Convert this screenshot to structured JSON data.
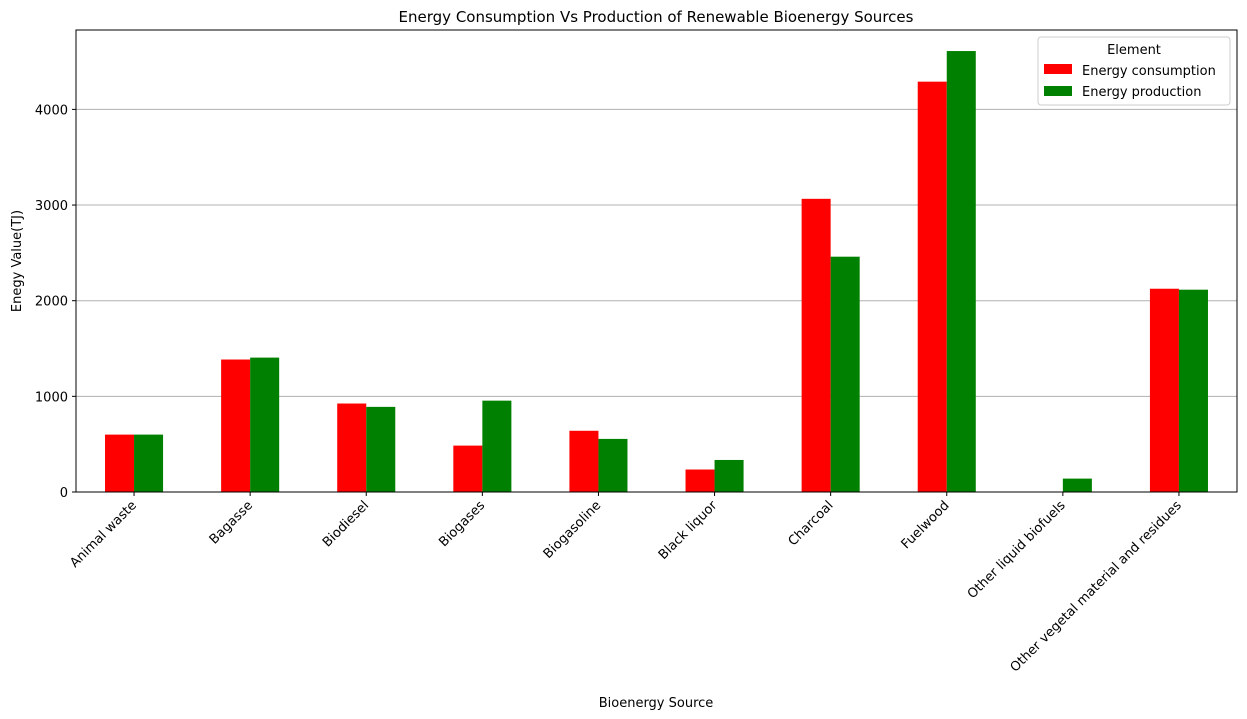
{
  "chart_data": {
    "type": "bar",
    "title": "Energy Consumption Vs Production of Renewable Bioenergy Sources",
    "xlabel": "Bioenergy Source",
    "ylabel": "Enegy Value(TJ)",
    "categories": [
      "Animal waste",
      "Bagasse",
      "Biodiesel",
      "Biogases",
      "Biogasoline",
      "Black liquor",
      "Charcoal",
      "Fuelwood",
      "Other liquid biofuels",
      "Other vegetal material and residues"
    ],
    "series": [
      {
        "name": "Energy consumption",
        "color": "#ff0000",
        "values": [
          600,
          1385,
          925,
          485,
          640,
          235,
          3065,
          4290,
          0,
          2125
        ]
      },
      {
        "name": "Energy production",
        "color": "#008000",
        "values": [
          600,
          1405,
          890,
          955,
          555,
          335,
          2460,
          4610,
          140,
          2115
        ]
      }
    ],
    "ylim": [
      0,
      4830
    ],
    "yticks": [
      0,
      1000,
      2000,
      3000,
      4000
    ],
    "grid": "y",
    "legend": {
      "title": "Element",
      "placement": "top-right"
    }
  }
}
